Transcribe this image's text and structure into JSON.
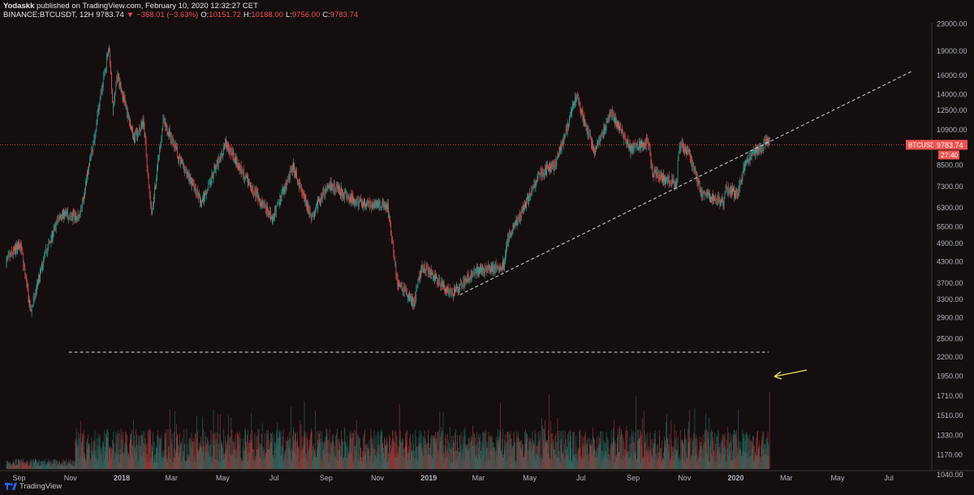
{
  "header": {
    "author": "Yodaskk",
    "published": "published on TradingView.com, February 10, 2020 12:32:27 CET",
    "symbol": "BINANCE:BTCUSDT, 12H",
    "last": "9783.74",
    "change": "−368.01 (−3.63%)",
    "open_label": "O:",
    "open": "10151.72",
    "high_label": "H:",
    "high": "10188.00",
    "low_label": "L:",
    "low": "9756.00",
    "close_label": "C:",
    "close": "9783.74"
  },
  "footer": {
    "brand": "TradingView"
  },
  "colors": {
    "background": "#140e0f",
    "up": "#26a69a",
    "down": "#ef5350",
    "price_line": "#d4463c",
    "trendline": "#d9d9d9",
    "annotation_arrow": "#f2e15a"
  },
  "chart_data": {
    "type": "candlestick",
    "symbol": "BTCUSDT",
    "interval": "12H",
    "price_axis": {
      "scale": "log",
      "ticks": [
        23000,
        19000,
        16000,
        14000,
        12500,
        10900,
        9783.74,
        8500,
        7300,
        6300,
        5500,
        4900,
        4300,
        3700,
        3300,
        2900,
        2500,
        2200,
        1950,
        1710,
        1510,
        1330,
        1170,
        1040
      ],
      "tick_labels": [
        "23000.00",
        "19000.00",
        "16000.00",
        "14000.00",
        "12500.00",
        "10900.00",
        "9783.74",
        "8500.00",
        "7300.00",
        "6300.00",
        "5500.00",
        "4900.00",
        "4300.00",
        "3700.00",
        "3300.00",
        "2900.00",
        "2500.00",
        "2200.00",
        "1950.00",
        "1710.00",
        "1510.00",
        "1330.00",
        "1170.00",
        "1040.00"
      ]
    },
    "time_axis": {
      "labels": [
        "Sep",
        "Nov",
        "2018",
        "Mar",
        "May",
        "Jul",
        "Sep",
        "Nov",
        "2019",
        "Mar",
        "May",
        "Jul",
        "Sep",
        "Nov",
        "2020",
        "Mar",
        "May",
        "Jul"
      ],
      "bold_labels": [
        "2018",
        "2019",
        "2020"
      ],
      "range": [
        "2017-08-17",
        "2020-08-20"
      ]
    },
    "price_path": [
      {
        "date": "2017-08-17",
        "price": 4300
      },
      {
        "date": "2017-09-03",
        "price": 4900
      },
      {
        "date": "2017-09-15",
        "price": 3000
      },
      {
        "date": "2017-10-01",
        "price": 4400
      },
      {
        "date": "2017-10-20",
        "price": 6000
      },
      {
        "date": "2017-11-12",
        "price": 5900
      },
      {
        "date": "2017-11-29",
        "price": 10000
      },
      {
        "date": "2017-12-17",
        "price": 19700
      },
      {
        "date": "2017-12-22",
        "price": 12500
      },
      {
        "date": "2017-12-27",
        "price": 16000
      },
      {
        "date": "2018-01-16",
        "price": 10200
      },
      {
        "date": "2018-01-27",
        "price": 11500
      },
      {
        "date": "2018-02-06",
        "price": 6000
      },
      {
        "date": "2018-02-20",
        "price": 11700
      },
      {
        "date": "2018-03-10",
        "price": 9000
      },
      {
        "date": "2018-04-06",
        "price": 6500
      },
      {
        "date": "2018-05-05",
        "price": 9900
      },
      {
        "date": "2018-06-01",
        "price": 7500
      },
      {
        "date": "2018-06-29",
        "price": 5800
      },
      {
        "date": "2018-07-24",
        "price": 8400
      },
      {
        "date": "2018-08-14",
        "price": 5900
      },
      {
        "date": "2018-09-05",
        "price": 7400
      },
      {
        "date": "2018-10-10",
        "price": 6500
      },
      {
        "date": "2018-11-13",
        "price": 6400
      },
      {
        "date": "2018-11-25",
        "price": 3700
      },
      {
        "date": "2018-12-15",
        "price": 3200
      },
      {
        "date": "2018-12-24",
        "price": 4200
      },
      {
        "date": "2019-01-29",
        "price": 3400
      },
      {
        "date": "2019-02-24",
        "price": 4000
      },
      {
        "date": "2019-04-01",
        "price": 4200
      },
      {
        "date": "2019-04-05",
        "price": 5000
      },
      {
        "date": "2019-05-14",
        "price": 8000
      },
      {
        "date": "2019-06-01",
        "price": 8500
      },
      {
        "date": "2019-06-26",
        "price": 13800
      },
      {
        "date": "2019-07-17",
        "price": 9200
      },
      {
        "date": "2019-08-06",
        "price": 12300
      },
      {
        "date": "2019-08-29",
        "price": 9500
      },
      {
        "date": "2019-09-20",
        "price": 10000
      },
      {
        "date": "2019-09-24",
        "price": 8000
      },
      {
        "date": "2019-10-23",
        "price": 7400
      },
      {
        "date": "2019-10-26",
        "price": 9800
      },
      {
        "date": "2019-11-07",
        "price": 9200
      },
      {
        "date": "2019-11-22",
        "price": 6900
      },
      {
        "date": "2019-12-18",
        "price": 6500
      },
      {
        "date": "2019-12-20",
        "price": 7200
      },
      {
        "date": "2020-01-03",
        "price": 6900
      },
      {
        "date": "2020-01-14",
        "price": 8800
      },
      {
        "date": "2020-01-30",
        "price": 9500
      },
      {
        "date": "2020-02-09",
        "price": 10150
      },
      {
        "date": "2020-02-10",
        "price": 9783.74
      }
    ],
    "annotations": {
      "price_line": {
        "value": 9783.74,
        "label": "BTCUSDT",
        "value_label": "9783.74",
        "countdown": "27:40"
      },
      "trendline": {
        "from": {
          "date": "2019-02-07",
          "price": 3400
        },
        "to": {
          "date": "2020-02-10",
          "price": 10000
        },
        "extended": true
      },
      "volume_level": {
        "from_date": "2017-10-30",
        "to_date": "2020-02-09"
      },
      "arrow": {
        "points_to_date": "2020-02-10",
        "direction": "left"
      }
    }
  }
}
